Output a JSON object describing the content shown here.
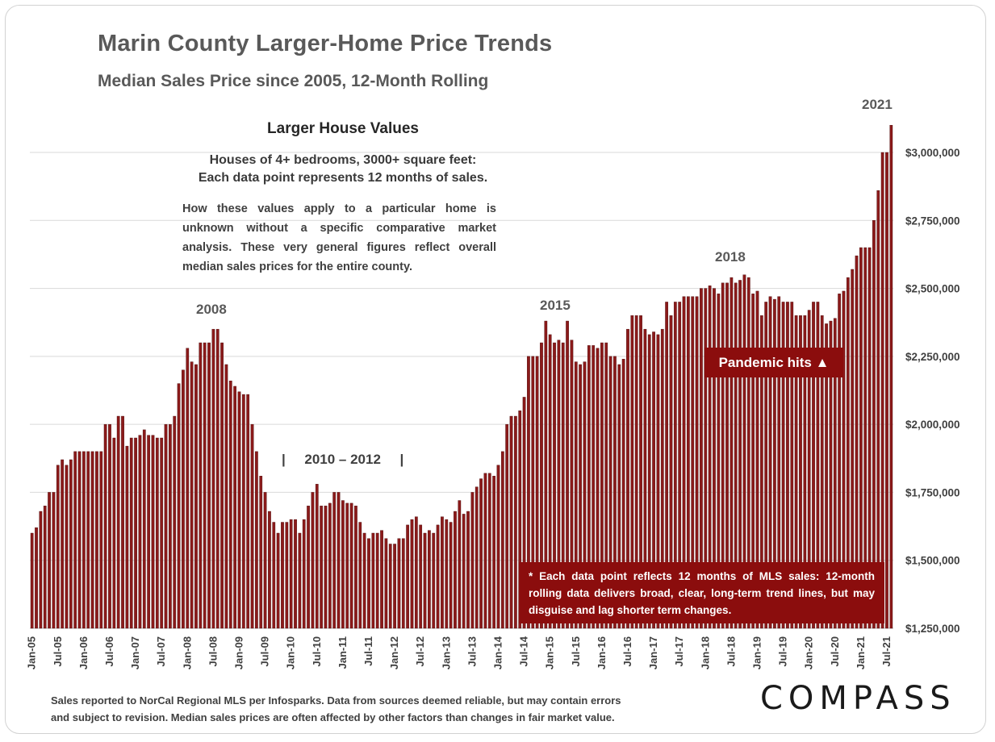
{
  "title": "Marin County Larger-Home Price Trends",
  "subtitle": "Median Sales Price since 2005, 12-Month Rolling",
  "box": {
    "title": "Larger House Values",
    "subtitle_line1": "Houses of 4+ bedrooms, 3000+ square feet:",
    "subtitle_line2": "Each data point represents 12 months of sales.",
    "text": "How these values apply to a particular home is unknown without a specific comparative market analysis. These very general figures reflect overall median sales prices for the entire county."
  },
  "annotations": {
    "y2008": "2008",
    "y2015": "2015",
    "y2018": "2018",
    "y2021": "2021",
    "period": "|     2010 – 2012     |",
    "pandemic": "Pandemic hits ▲",
    "note": "* Each data point reflects 12 months of MLS sales: 12-month rolling data delivers broad, clear, long-term trend lines, but may disguise and lag shorter term changes."
  },
  "footer": {
    "line1": "Sales reported to NorCal Regional MLS per Infosparks. Data from sources deemed reliable, but may contain errors",
    "line2": "and subject to revision. Median sales prices are often affected by other factors than changes in fair market value."
  },
  "logo": "COMPASS",
  "colors": {
    "bar": "#8b1a1a",
    "bar_edge": "#4a0a0a",
    "accent_box": "#8b0d0d",
    "grid": "#d9d9d9"
  },
  "chart_data": {
    "type": "bar",
    "start_month": "Jan-05",
    "y_axis_side": "right",
    "ylim": [
      1250000,
      3100000
    ],
    "yticks": [
      1250000,
      1500000,
      1750000,
      2000000,
      2250000,
      2500000,
      2750000,
      3000000
    ],
    "ytick_labels": [
      "$1,250,000",
      "$1,500,000",
      "$1,750,000",
      "$2,000,000",
      "$2,250,000",
      "$2,500,000",
      "$2,750,000",
      "$3,000,000"
    ],
    "xtick_labels": [
      "Jan-05",
      "Jul-05",
      "Jan-06",
      "Jul-06",
      "Jan-07",
      "Jul-07",
      "Jan-08",
      "Jul-08",
      "Jan-09",
      "Jul-09",
      "Jan-10",
      "Jul-10",
      "Jan-11",
      "Jul-11",
      "Jan-12",
      "Jul-12",
      "Jan-13",
      "Jul-13",
      "Jan-14",
      "Jul-14",
      "Jan-15",
      "Jul-15",
      "Jan-16",
      "Jul-16",
      "Jan-17",
      "Jul-17",
      "Jan-18",
      "Jul-18",
      "Jan-19",
      "Jul-19",
      "Jan-20",
      "Jul-20",
      "Jan-21",
      "Jul-21"
    ],
    "grid": true,
    "values": [
      1600000,
      1620000,
      1680000,
      1700000,
      1750000,
      1750000,
      1850000,
      1870000,
      1850000,
      1870000,
      1900000,
      1900000,
      1900000,
      1900000,
      1900000,
      1900000,
      1900000,
      2000000,
      2000000,
      1950000,
      2030000,
      2030000,
      1920000,
      1950000,
      1950000,
      1960000,
      1980000,
      1960000,
      1960000,
      1950000,
      1950000,
      2000000,
      2000000,
      2030000,
      2150000,
      2200000,
      2280000,
      2230000,
      2220000,
      2300000,
      2300000,
      2300000,
      2350000,
      2350000,
      2300000,
      2220000,
      2160000,
      2140000,
      2120000,
      2110000,
      2110000,
      2000000,
      1900000,
      1810000,
      1750000,
      1680000,
      1640000,
      1600000,
      1640000,
      1640000,
      1650000,
      1650000,
      1600000,
      1650000,
      1700000,
      1750000,
      1780000,
      1700000,
      1700000,
      1710000,
      1750000,
      1750000,
      1720000,
      1710000,
      1710000,
      1700000,
      1640000,
      1600000,
      1580000,
      1600000,
      1600000,
      1610000,
      1580000,
      1560000,
      1560000,
      1580000,
      1580000,
      1630000,
      1650000,
      1660000,
      1630000,
      1600000,
      1610000,
      1600000,
      1630000,
      1660000,
      1650000,
      1640000,
      1680000,
      1720000,
      1670000,
      1680000,
      1750000,
      1770000,
      1800000,
      1820000,
      1820000,
      1810000,
      1850000,
      1900000,
      2000000,
      2030000,
      2030000,
      2050000,
      2100000,
      2250000,
      2250000,
      2250000,
      2300000,
      2380000,
      2330000,
      2300000,
      2310000,
      2300000,
      2380000,
      2310000,
      2230000,
      2220000,
      2230000,
      2290000,
      2290000,
      2280000,
      2300000,
      2300000,
      2250000,
      2250000,
      2220000,
      2240000,
      2350000,
      2400000,
      2400000,
      2400000,
      2350000,
      2330000,
      2340000,
      2330000,
      2350000,
      2450000,
      2400000,
      2450000,
      2450000,
      2470000,
      2470000,
      2470000,
      2470000,
      2500000,
      2500000,
      2510000,
      2500000,
      2480000,
      2520000,
      2520000,
      2540000,
      2520000,
      2530000,
      2550000,
      2540000,
      2480000,
      2490000,
      2400000,
      2450000,
      2470000,
      2460000,
      2470000,
      2450000,
      2450000,
      2450000,
      2400000,
      2400000,
      2400000,
      2420000,
      2450000,
      2450000,
      2400000,
      2370000,
      2380000,
      2390000,
      2480000,
      2490000,
      2540000,
      2570000,
      2620000,
      2650000,
      2650000,
      2650000,
      2750000,
      2860000,
      3000000,
      3000000,
      3100000
    ]
  }
}
